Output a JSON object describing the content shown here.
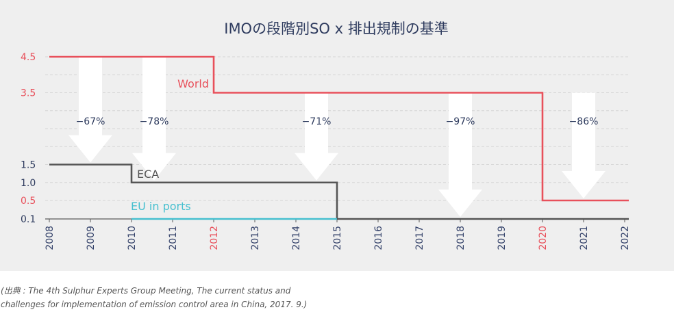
{
  "chart_data": {
    "type": "line",
    "step": true,
    "title": "IMOの段階別SO x 排出規制の基準",
    "xlim": [
      2008,
      2022
    ],
    "ylim": [
      0.1,
      4.5
    ],
    "grid": true,
    "x_ticks": [
      2008,
      2009,
      2010,
      2011,
      2012,
      2013,
      2014,
      2015,
      2016,
      2017,
      2018,
      2019,
      2020,
      2021,
      2022
    ],
    "highlighted_x_ticks": [
      2012,
      2020
    ],
    "y_ticks": [
      {
        "label": "4.5",
        "color": "#e8505b"
      },
      {
        "label": "3.5",
        "color": "#e8505b"
      },
      {
        "label": "1.5",
        "color": "#2e3b5e"
      },
      {
        "label": "1.0",
        "color": "#2e3b5e"
      },
      {
        "label": "0.5",
        "color": "#e8505b"
      },
      {
        "label": "0.1",
        "color": "#2e3b5e"
      }
    ],
    "series": [
      {
        "name": "World",
        "color": "#e8505b",
        "points": [
          {
            "x": 2008,
            "y": 4.5
          },
          {
            "x": 2012,
            "y": 3.5
          },
          {
            "x": 2020,
            "y": 0.5
          }
        ],
        "end_x": 2022
      },
      {
        "name": "ECA",
        "color": "#555555",
        "points": [
          {
            "x": 2008,
            "y": 1.5
          },
          {
            "x": 2010,
            "y": 1.0
          },
          {
            "x": 2015,
            "y": 0.1
          }
        ],
        "end_x": 2022
      },
      {
        "name": "EU in ports",
        "color": "#45bfcf",
        "points": [
          {
            "x": 2010,
            "y": 0.1
          }
        ],
        "end_x": 2015
      }
    ],
    "annotations": [
      {
        "text": "−67%",
        "x": 2009,
        "from": 4.5,
        "to": 1.5
      },
      {
        "text": "−78%",
        "x": 2010.55,
        "from": 4.5,
        "to": 1.0
      },
      {
        "text": "−71%",
        "x": 2014.5,
        "from": 3.5,
        "to": 1.0
      },
      {
        "text": "−97%",
        "x": 2018,
        "from": 3.5,
        "to": 0.1
      },
      {
        "text": "−86%",
        "x": 2021,
        "from": 3.5,
        "to": 0.5
      }
    ]
  },
  "colors": {
    "background": "#efefef",
    "title": "#2e3b5e",
    "tick_text": "#34426a",
    "highlight": "#e8505b",
    "axis": "#5a5a5a",
    "grid": "#d6d6d6",
    "arrow": "#ffffff"
  },
  "source": {
    "line1": "(出典 : The 4th Sulphur Experts Group Meeting, The current status and",
    "line2": "challenges for implementation of emission control area in China, 2017. 9.)"
  }
}
